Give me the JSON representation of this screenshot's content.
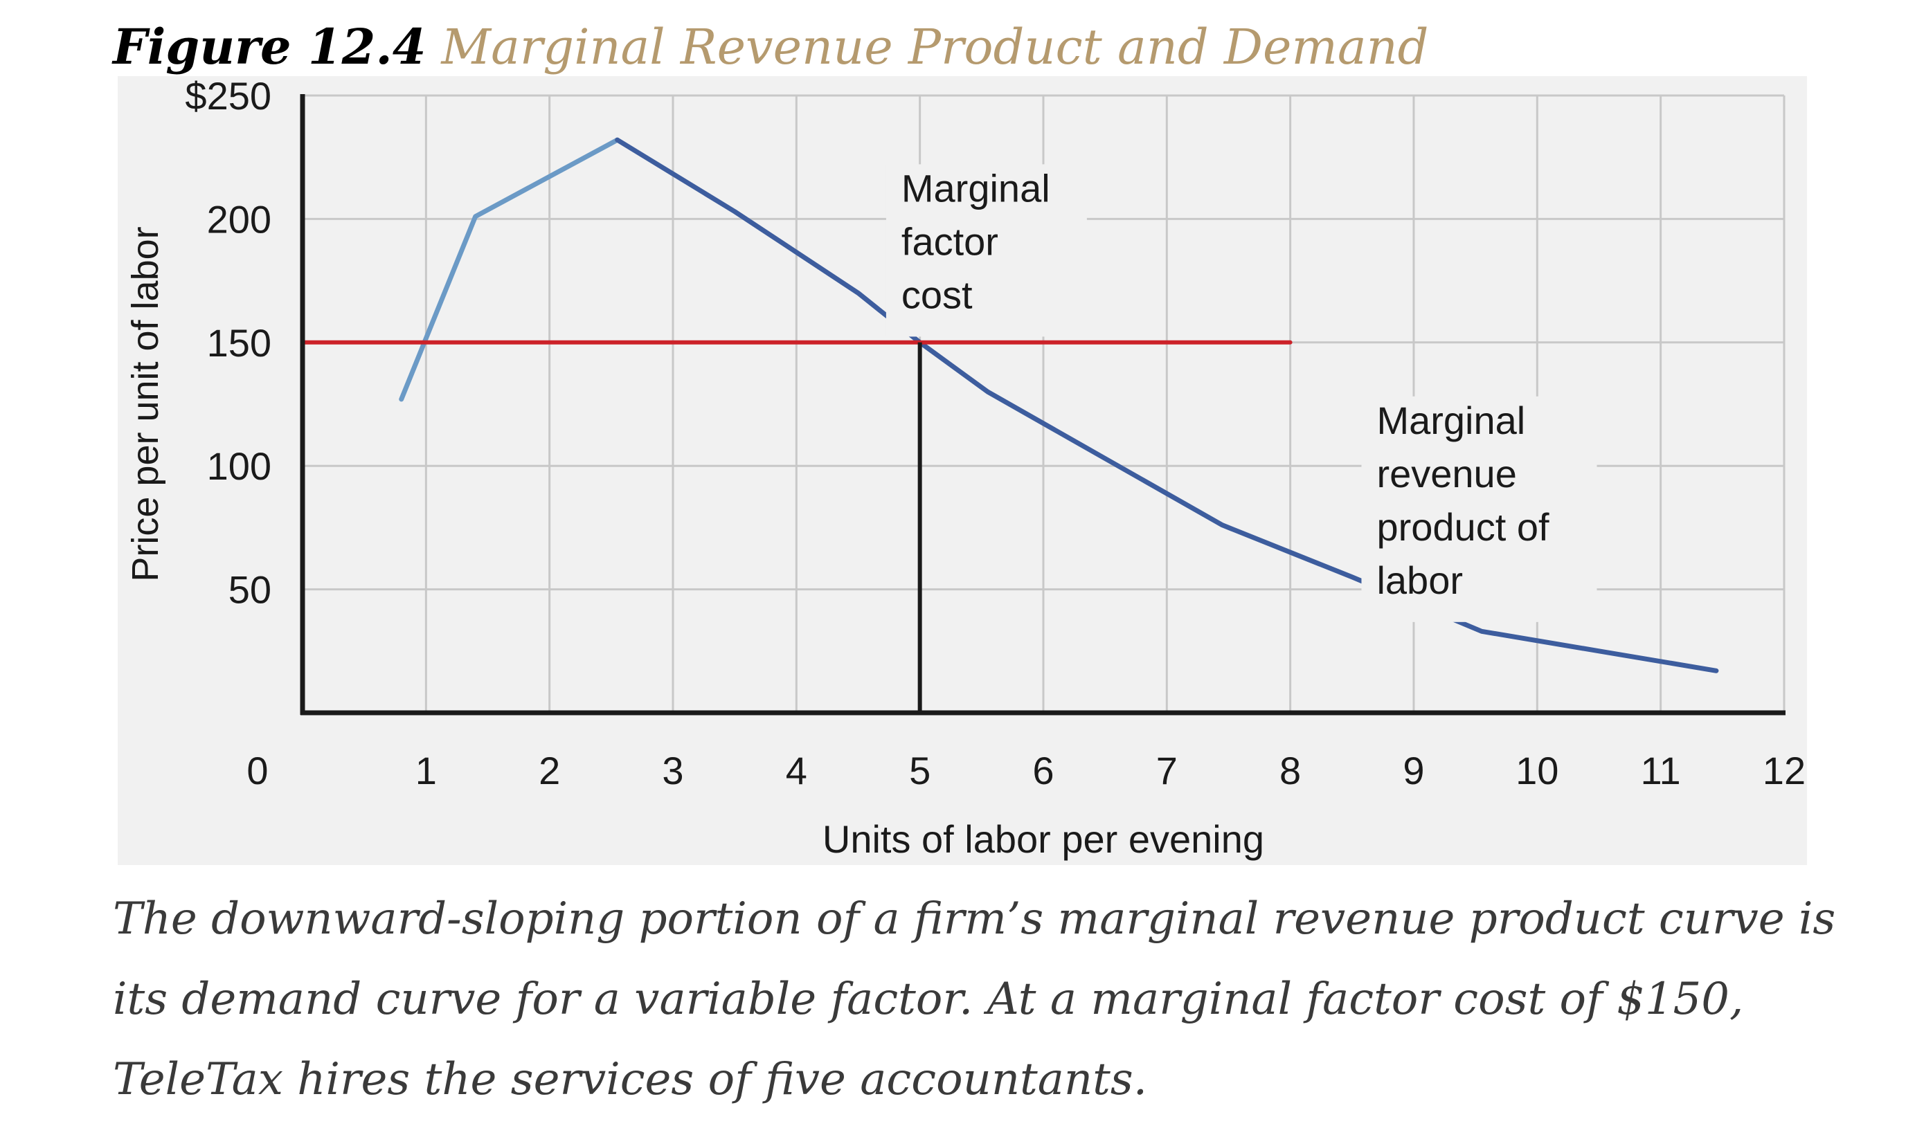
{
  "figure": {
    "label": "Figure 12.4",
    "title": "Marginal Revenue Product and Demand",
    "caption": "The downward-sloping portion of a firm’s marginal revenue product curve is its demand curve for a variable factor. At a marginal factor cost of $150, TeleTax hires the services of five accountants."
  },
  "colors": {
    "title_accent": "#b59a6e",
    "mrp_rising": "#6b9ac6",
    "mrp_falling": "#3d5d9e",
    "mfc_line": "#cc2229",
    "grid": "#c8c8c8",
    "plot_background": "#f1f1f1",
    "axis": "#1a1a1a"
  },
  "chart_data": {
    "type": "line",
    "xlabel": "Units of labor per evening",
    "ylabel": "Price per unit of labor",
    "xlim": [
      0,
      12
    ],
    "ylim": [
      0,
      250
    ],
    "x_ticks": [
      "0",
      "1",
      "2",
      "3",
      "4",
      "5",
      "6",
      "7",
      "8",
      "9",
      "10",
      "11",
      "12"
    ],
    "y_ticks": [
      {
        "value": 250,
        "label": "$250"
      },
      {
        "value": 200,
        "label": "200"
      },
      {
        "value": 150,
        "label": "150"
      },
      {
        "value": 100,
        "label": "100"
      },
      {
        "value": 50,
        "label": "50"
      }
    ],
    "grid": true,
    "series": [
      {
        "name": "Marginal revenue product of labor",
        "segment": "rising",
        "x": [
          0.8,
          1.4,
          2.55
        ],
        "y": [
          127,
          201,
          232
        ]
      },
      {
        "name": "Marginal revenue product of labor",
        "segment": "falling",
        "x": [
          2.55,
          3.5,
          4.5,
          5.0,
          5.55,
          6.5,
          7.45,
          8.5,
          9.55,
          10.5,
          11.45
        ],
        "y": [
          232,
          203,
          170,
          150,
          130,
          103,
          76,
          55,
          33,
          25,
          17
        ]
      },
      {
        "name": "Marginal factor cost",
        "x": [
          0,
          8
        ],
        "y": [
          150,
          150
        ]
      }
    ],
    "reference_lines": [
      {
        "x": [
          5,
          5
        ],
        "y": [
          0,
          150
        ]
      }
    ],
    "annotations": [
      {
        "lines": [
          "Marginal",
          "factor",
          "cost"
        ],
        "x": 4.85,
        "y": 207
      },
      {
        "lines": [
          "Marginal",
          "revenue",
          "product of",
          "labor"
        ],
        "x": 8.7,
        "y": 113
      }
    ]
  }
}
